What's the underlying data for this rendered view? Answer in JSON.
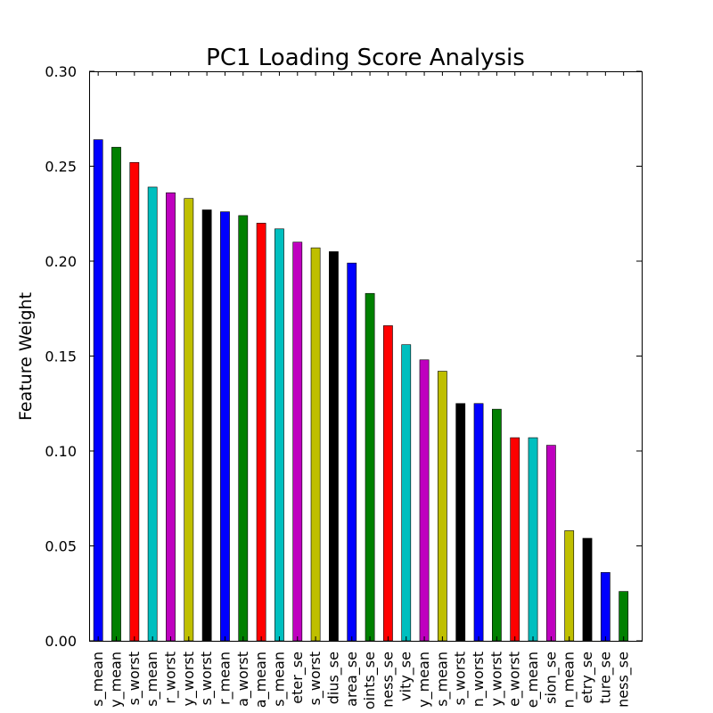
{
  "chart_data": {
    "type": "bar",
    "title": "PC1 Loading Score Analysis",
    "xlabel": "",
    "ylabel": "Feature Weight",
    "ylim": [
      0,
      0.3
    ],
    "yticks": [
      "0.00",
      "0.05",
      "0.10",
      "0.15",
      "0.20",
      "0.25",
      "0.30"
    ],
    "grid": false,
    "categories": [
      "s_mean",
      "y_mean",
      "s_worst",
      "s_mean",
      "r_worst",
      "y_worst",
      "s_worst",
      "r_mean",
      "a_worst",
      "a_mean",
      "s_mean",
      "eter_se",
      "s_worst",
      "dius_se",
      "area_se",
      "oints_se",
      "ness_se",
      "vity_se",
      "y_mean",
      "s_mean",
      "s_worst",
      "n_worst",
      "y_worst",
      "e_worst",
      "e_mean",
      "sion_se",
      "n_mean",
      "etry_se",
      "ture_se",
      "ness_se"
    ],
    "values": [
      0.264,
      0.26,
      0.252,
      0.239,
      0.236,
      0.233,
      0.227,
      0.226,
      0.224,
      0.22,
      0.217,
      0.21,
      0.207,
      0.205,
      0.199,
      0.183,
      0.166,
      0.156,
      0.148,
      0.142,
      0.125,
      0.125,
      0.122,
      0.107,
      0.107,
      0.103,
      0.058,
      0.054,
      0.036,
      0.026
    ],
    "colors": [
      "#0000ff",
      "#008000",
      "#ff0000",
      "#00bfbf",
      "#bf00bf",
      "#bfbf00",
      "#000000"
    ]
  }
}
